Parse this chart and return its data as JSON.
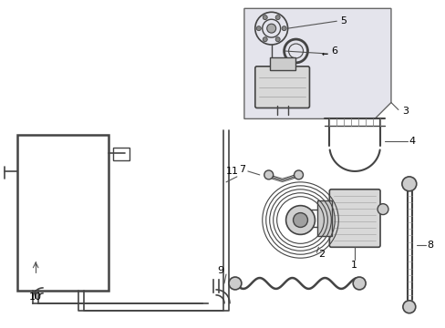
{
  "background_color": "#ffffff",
  "lc": "#444444",
  "lc_light": "#888888",
  "box_fill": "#e0e0e8",
  "fig_w": 4.89,
  "fig_h": 3.6,
  "dpi": 100
}
